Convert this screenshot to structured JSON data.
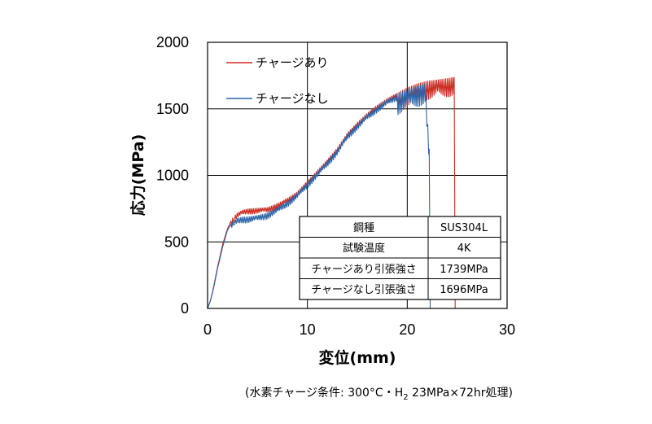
{
  "chart_data": {
    "type": "line",
    "xlabel": "変位(mm)",
    "ylabel": "応力(MPa)",
    "xlim": [
      0,
      30
    ],
    "ylim": [
      0,
      2000
    ],
    "xticks": [
      "0",
      "10",
      "20",
      "30"
    ],
    "yticks": [
      "0",
      "500",
      "1000",
      "1500",
      "2000"
    ],
    "grid": true,
    "legend_position": "top-left",
    "series": [
      {
        "name": "チャージあり",
        "color": "#cc2a1f",
        "x": [
          0,
          0.3,
          0.6,
          1.0,
          1.5,
          2.0,
          2.5,
          3.0,
          3.5,
          4.0,
          5.0,
          6.0,
          7.0,
          8.0,
          9.0,
          10.0,
          11.0,
          12.0,
          13.0,
          14.0,
          15.0,
          16.0,
          17.0,
          18.0,
          19.0,
          20.0,
          21.0,
          22.0,
          23.0,
          24.0,
          24.7,
          24.8
        ],
        "y": [
          0,
          60,
          160,
          310,
          480,
          600,
          680,
          720,
          740,
          750,
          755,
          760,
          790,
          830,
          880,
          960,
          1040,
          1120,
          1210,
          1320,
          1400,
          1470,
          1530,
          1580,
          1620,
          1660,
          1690,
          1710,
          1720,
          1730,
          1739,
          0
        ],
        "oscillation_amplitude": 45
      },
      {
        "name": "チャージなし",
        "color": "#2b64a8",
        "x": [
          0,
          0.3,
          0.6,
          1.0,
          1.5,
          2.0,
          2.5,
          3.0,
          3.5,
          4.0,
          5.0,
          6.0,
          7.0,
          8.0,
          9.0,
          10.0,
          11.0,
          12.0,
          13.0,
          14.0,
          15.0,
          16.0,
          17.0,
          18.0,
          19.0,
          20.0,
          21.0,
          21.8,
          22.2,
          22.3
        ],
        "y": [
          0,
          60,
          150,
          300,
          460,
          590,
          650,
          680,
          690,
          690,
          700,
          720,
          760,
          810,
          870,
          950,
          1030,
          1110,
          1200,
          1310,
          1390,
          1460,
          1520,
          1570,
          1610,
          1650,
          1670,
          1696,
          1200,
          0
        ],
        "oscillation_amplitude": 50
      }
    ],
    "table": {
      "rows": [
        [
          "鋼種",
          "SUS304L"
        ],
        [
          "試験温度",
          "4K"
        ],
        [
          "チャージあり引張強さ",
          "1739MPa"
        ],
        [
          "チャージなし引張強さ",
          "1696MPa"
        ]
      ]
    }
  },
  "note": {
    "before_sub": "(水素チャージ条件: 300°C・H",
    "sub": "2",
    "after_sub": " 23MPa×72hr処理)"
  }
}
